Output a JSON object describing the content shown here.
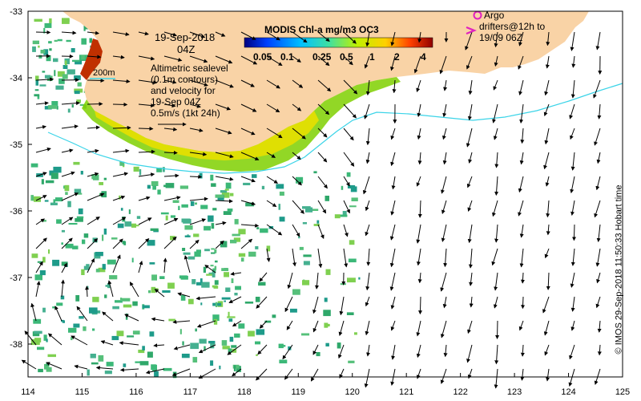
{
  "map": {
    "date_line1": "19-Sep-2018",
    "date_line2": "04Z",
    "contour_label": "200m",
    "legend_text": [
      "Altimetric sealevel",
      "(0.1m contours)",
      "and velocity for",
      "19-Sep 04Z",
      "0.5m/s (1kt 24h)"
    ],
    "colorbar_title": "MODIS Chl-a mg/m3 OC3",
    "colorbar_ticks": [
      "0.05",
      "0.1",
      "0.25",
      "0.5",
      "1",
      "2",
      "4"
    ],
    "argo_label": "Argo",
    "drifter_lines": [
      "drifters@12h to",
      "19/09 06Z"
    ],
    "credit": "© IMOS 29-Sep-2018 11:50:33 Hobart time",
    "x_ticks": [
      "114",
      "115",
      "116",
      "117",
      "118",
      "119",
      "120",
      "121",
      "122",
      "123",
      "124",
      "125"
    ],
    "y_ticks": [
      "-33",
      "-34",
      "-35",
      "-36",
      "-37",
      "-38"
    ],
    "colors": {
      "land": "#f9d3a6",
      "shelf_contour": "#3bd4e8",
      "argo": "#e020c0",
      "drifter": "#e020c0"
    }
  }
}
